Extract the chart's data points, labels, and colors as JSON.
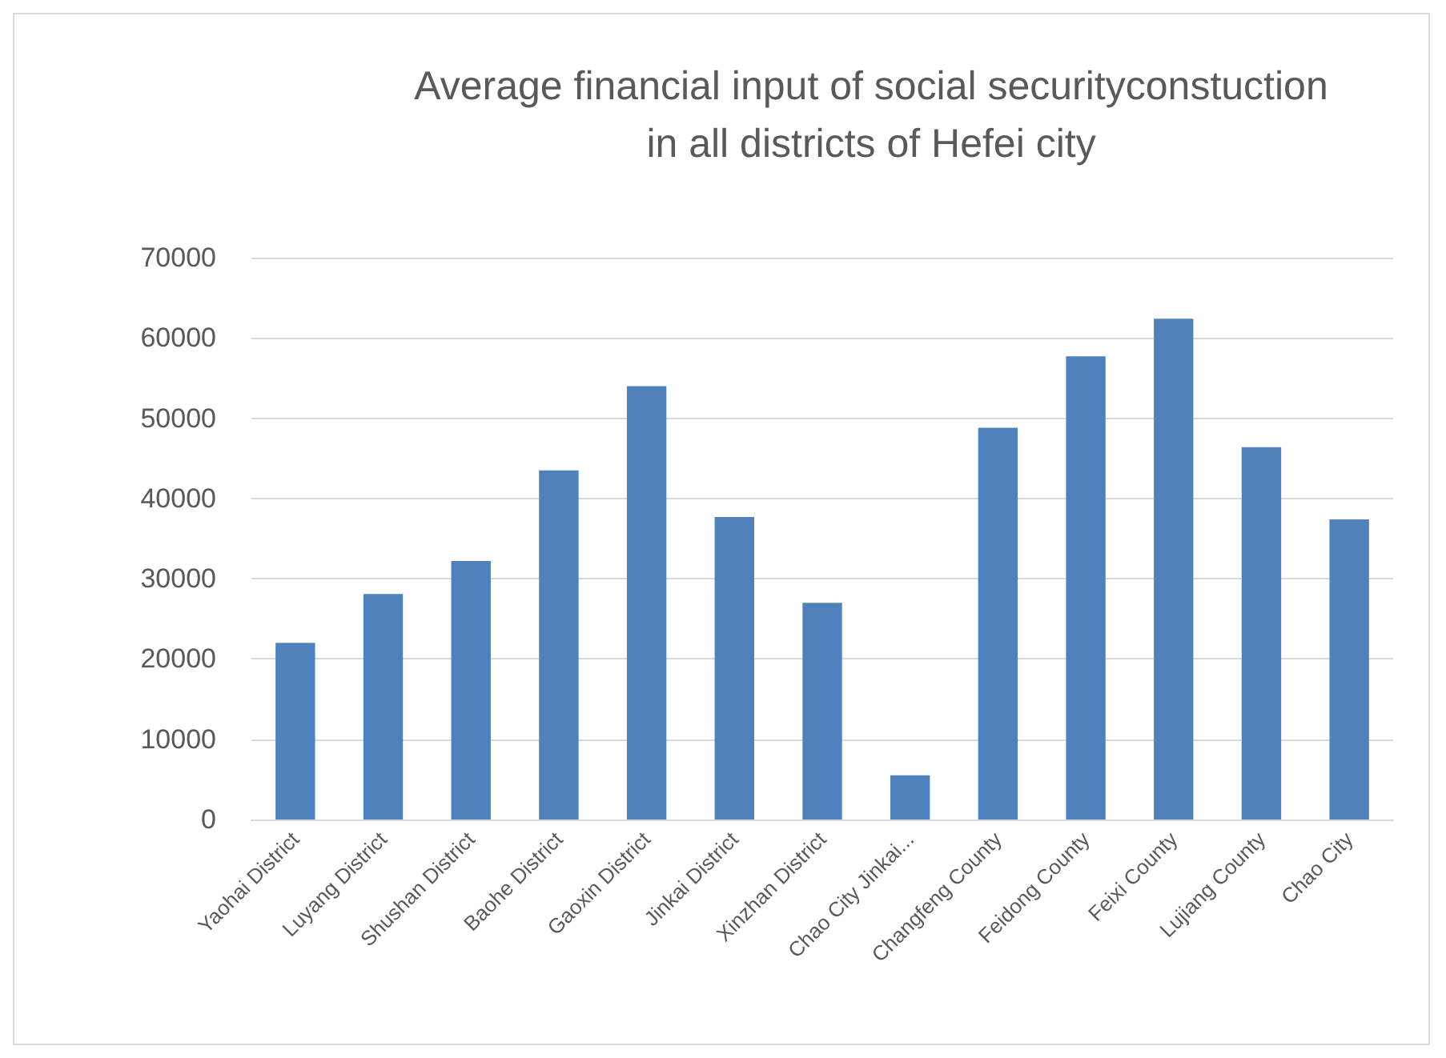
{
  "chart_data": {
    "type": "bar",
    "title": "Average financial input of social securityconstuction\nin all districts of Hefei city",
    "categories": [
      "Yaohai District",
      "Luyang District",
      "Shushan District",
      "Baohe District",
      "Gaoxin District",
      "Jinkai District",
      "Xinzhan District",
      "Chao City Jinkai...",
      "Changfeng County",
      "Feidong County",
      "Feixi County",
      "Lujiang County",
      "Chao City"
    ],
    "values": [
      22000,
      28100,
      32200,
      43500,
      54000,
      37700,
      27000,
      5500,
      48800,
      57700,
      62400,
      46400,
      37400
    ],
    "color": "#4f81bd",
    "ylim": [
      0,
      70000
    ],
    "yticks": [
      0,
      10000,
      20000,
      30000,
      40000,
      50000,
      60000,
      70000
    ],
    "grid": "y"
  }
}
